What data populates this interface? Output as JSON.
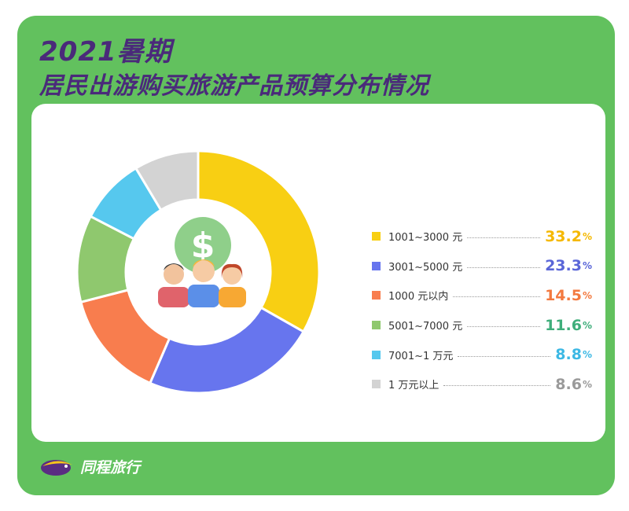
{
  "header": {
    "title_line1": "2021暑期",
    "title_line2": "居民出游购买旅游产品预算分布情况"
  },
  "brand": {
    "name": "同程旅行",
    "logo_icon": "tongcheng-bird-logo"
  },
  "center_illustration": {
    "icons": [
      "dollar-coin-icon",
      "people-group-icon"
    ]
  },
  "chart_data": {
    "type": "pie",
    "donut": true,
    "title": "",
    "unit": "%",
    "legend_position": "right",
    "categories": [
      "1001~3000 元",
      "3001~5000 元",
      "1000 元以内",
      "5001~7000 元",
      "7001~1 万元",
      "1 万元以上"
    ],
    "values": [
      33.2,
      23.3,
      14.5,
      11.6,
      8.8,
      8.6
    ],
    "value_labels": [
      "33.2",
      "23.3",
      "14.5",
      "11.6",
      "8.8",
      "8.6"
    ],
    "colors": [
      "#f8cf13",
      "#6775ee",
      "#f87d4e",
      "#8fc86e",
      "#56c8ee",
      "#d3d3d3"
    ],
    "value_colors": [
      "#f5b800",
      "#5a66d8",
      "#f3793f",
      "#3fae7b",
      "#3cb8e4",
      "#9a9a9a"
    ]
  }
}
